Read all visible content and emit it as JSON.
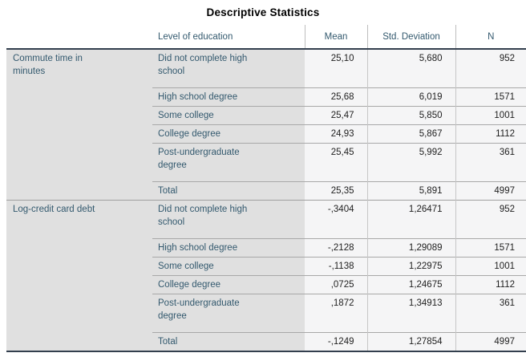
{
  "chart_data": {
    "type": "table",
    "title": "Descriptive Statistics",
    "columns": [
      "",
      "Level of education",
      "Mean",
      "Std. Deviation",
      "N"
    ],
    "groups": [
      {
        "label": "Commute time in minutes",
        "rows": [
          {
            "level": "Did not complete high school",
            "mean": "25,10",
            "std": "5,680",
            "n": "952"
          },
          {
            "level": "High school degree",
            "mean": "25,68",
            "std": "6,019",
            "n": "1571"
          },
          {
            "level": "Some college",
            "mean": "25,47",
            "std": "5,850",
            "n": "1001"
          },
          {
            "level": "College degree",
            "mean": "24,93",
            "std": "5,867",
            "n": "1112"
          },
          {
            "level": "Post-undergraduate degree",
            "mean": "25,45",
            "std": "5,992",
            "n": "361"
          },
          {
            "level": "Total",
            "mean": "25,35",
            "std": "5,891",
            "n": "4997"
          }
        ]
      },
      {
        "label": "Log-credit card debt",
        "rows": [
          {
            "level": "Did not complete high school",
            "mean": "-,3404",
            "std": "1,26471",
            "n": "952"
          },
          {
            "level": "High school degree",
            "mean": "-,2128",
            "std": "1,29089",
            "n": "1571"
          },
          {
            "level": "Some college",
            "mean": "-,1138",
            "std": "1,22975",
            "n": "1001"
          },
          {
            "level": "College degree",
            "mean": ",0725",
            "std": "1,24675",
            "n": "1112"
          },
          {
            "level": "Post-undergraduate degree",
            "mean": ",1872",
            "std": "1,34913",
            "n": "361"
          },
          {
            "level": "Total",
            "mean": "-,1249",
            "std": "1,27854",
            "n": "4997"
          }
        ]
      }
    ],
    "layout": {
      "grid": "horizontal rules between rows; light vertical rules between statistic columns",
      "label_columns_background": "#E0E0E0",
      "data_columns_background": "#F5F5F6"
    }
  },
  "colors": {
    "label_text": "#33596E",
    "value_text": "#1E1E1E",
    "thick_rule": "#333F4E",
    "thin_rule": "#A8A8A8",
    "vertical_rule": "#C6C6C6",
    "label_background": "#E0E0E0",
    "data_background": "#F5F5F6"
  }
}
